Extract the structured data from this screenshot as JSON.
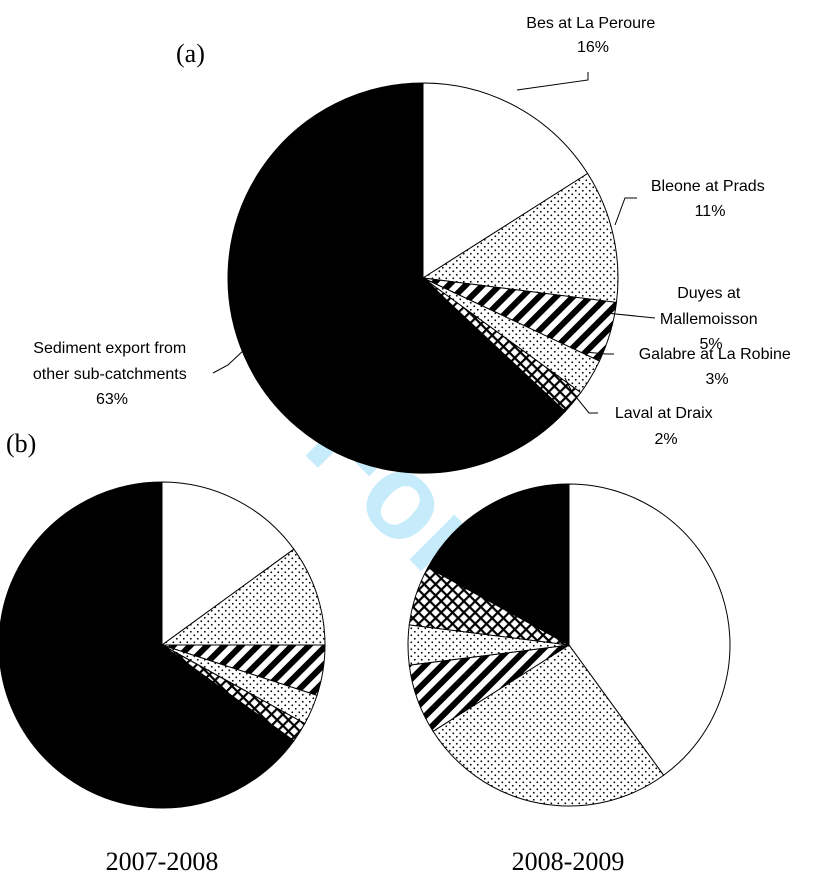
{
  "chart_data": [
    {
      "type": "pie",
      "panel_label": "(a)",
      "slices": [
        {
          "label_lines": [
            "Bes at La Peroure",
            "16%"
          ],
          "value": 16,
          "pattern": "white"
        },
        {
          "label_lines": [
            "Bleone at Prads",
            "11%"
          ],
          "value": 11,
          "pattern": "dots"
        },
        {
          "label_lines": [
            "Duyes at",
            "Mallemoisson",
            "5%"
          ],
          "value": 5,
          "pattern": "diag"
        },
        {
          "label_lines": [
            "Galabre at La Robine",
            "3%"
          ],
          "value": 3,
          "pattern": "dots"
        },
        {
          "label_lines": [
            "Laval at Draix",
            "2%"
          ],
          "value": 2,
          "pattern": "cross"
        },
        {
          "label_lines": [
            "Sediment export from",
            "other sub-catchments",
            "63%"
          ],
          "value": 63,
          "pattern": "black"
        }
      ]
    },
    {
      "type": "pie",
      "panel_label": "(b)",
      "period": "2007-2008",
      "slices": [
        {
          "value": 15,
          "pattern": "white"
        },
        {
          "value": 10,
          "pattern": "dots"
        },
        {
          "value": 5,
          "pattern": "diag"
        },
        {
          "value": 3,
          "pattern": "dots"
        },
        {
          "value": 2,
          "pattern": "cross"
        },
        {
          "value": 65,
          "pattern": "black"
        }
      ]
    },
    {
      "type": "pie",
      "period": "2008-2009",
      "slices": [
        {
          "value": 40,
          "pattern": "white"
        },
        {
          "value": 26,
          "pattern": "dots"
        },
        {
          "value": 7,
          "pattern": "diag"
        },
        {
          "value": 4,
          "pattern": "dots"
        },
        {
          "value": 6,
          "pattern": "cross"
        },
        {
          "value": 17,
          "pattern": "black"
        }
      ]
    }
  ],
  "watermark": "For"
}
